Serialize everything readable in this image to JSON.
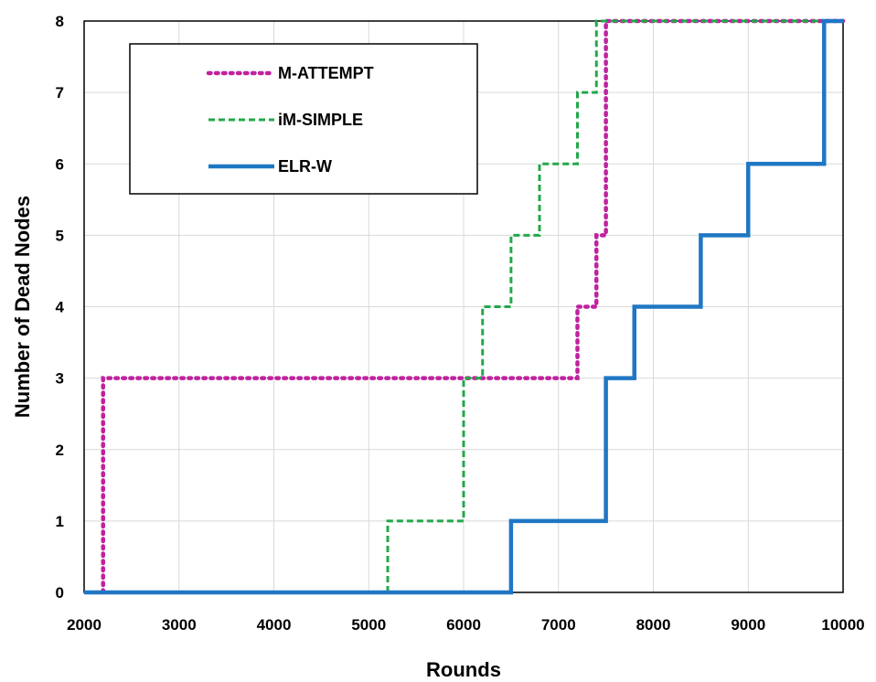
{
  "chart_data": {
    "type": "line",
    "title": "",
    "xlabel": "Rounds",
    "ylabel": "Number of Dead Nodes",
    "xlim": [
      2000,
      10000
    ],
    "ylim": [
      0,
      8
    ],
    "xticks": [
      2000,
      3000,
      4000,
      5000,
      6000,
      7000,
      8000,
      9000,
      10000
    ],
    "yticks": [
      0,
      1,
      2,
      3,
      4,
      5,
      6,
      7,
      8
    ],
    "grid": true,
    "legend_position": "top-left",
    "line_shape": "step",
    "series": [
      {
        "name": "M-ATTEMPT",
        "color": "#c0229f",
        "style": "dotted",
        "points": [
          [
            2200,
            0
          ],
          [
            2200,
            3
          ],
          [
            7200,
            3
          ],
          [
            7200,
            4
          ],
          [
            7400,
            4
          ],
          [
            7400,
            5
          ],
          [
            7500,
            5
          ],
          [
            7500,
            8
          ],
          [
            10000,
            8
          ]
        ]
      },
      {
        "name": "iM-SIMPLE",
        "color": "#22a84a",
        "style": "dashed",
        "points": [
          [
            5200,
            0
          ],
          [
            5200,
            1
          ],
          [
            6000,
            1
          ],
          [
            6000,
            3
          ],
          [
            6200,
            3
          ],
          [
            6200,
            4
          ],
          [
            6500,
            4
          ],
          [
            6500,
            5
          ],
          [
            6800,
            5
          ],
          [
            6800,
            6
          ],
          [
            7200,
            6
          ],
          [
            7200,
            7
          ],
          [
            7400,
            7
          ],
          [
            7400,
            8
          ],
          [
            10000,
            8
          ]
        ]
      },
      {
        "name": "ELR-W",
        "color": "#1f77c4",
        "style": "solid",
        "points": [
          [
            2000,
            0
          ],
          [
            6500,
            0
          ],
          [
            6500,
            1
          ],
          [
            7500,
            1
          ],
          [
            7500,
            3
          ],
          [
            7800,
            3
          ],
          [
            7800,
            4
          ],
          [
            8500,
            4
          ],
          [
            8500,
            5
          ],
          [
            9000,
            5
          ],
          [
            9000,
            6
          ],
          [
            9800,
            6
          ],
          [
            9800,
            8
          ],
          [
            10000,
            8
          ]
        ]
      }
    ]
  }
}
